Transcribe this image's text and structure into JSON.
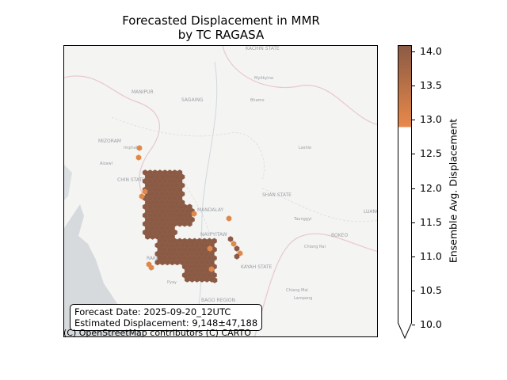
{
  "title_line1": "Forecasted Displacement in MMR",
  "title_line2": "by TC RAGASA",
  "info": {
    "forecast_date": "Forecast Date: 2025-09-20_12UTC",
    "estimated": "Estimated Displacement: 9,148±47,188"
  },
  "attribution": "(C) OpenStreetMap contributors (C) CARTO",
  "map_labels": [
    "KACHIN STATE",
    "SAGAING",
    "MANIPUR",
    "MIZORAM",
    "CHIN STATE",
    "MANDALAY",
    "SHAN STATE",
    "NAYPYITAW",
    "BOKEO",
    "LUANG",
    "RAKHINE",
    "KAYAH STATE",
    "BAGO REGION",
    "Myitkyina",
    "Bhamo",
    "Lashio",
    "Taunggyi",
    "Chiang Rai",
    "Chiang Mai",
    "Lampang",
    "Pyay",
    "Imphal",
    "Aizawl"
  ],
  "colorbar": {
    "label": "Ensemble Avg. Displacement",
    "ticks": [
      "14.0",
      "13.5",
      "13.0",
      "12.5",
      "12.0",
      "11.5",
      "11.0",
      "10.5",
      "10.0"
    ],
    "min": 10.0,
    "max": 14.1,
    "color_low": "#e8894a",
    "color_high": "#8b5a44"
  },
  "colors": {
    "hex_dark": "#8b5a44",
    "hex_light": "#e08848"
  }
}
